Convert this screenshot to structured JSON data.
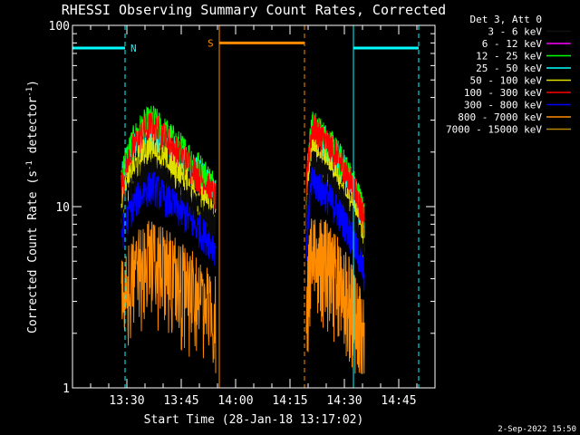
{
  "chart_data": {
    "type": "line",
    "title": "RHESSI Observing Summary Count Rates, Corrected",
    "xlabel": "Start Time (28-Jan-18 13:17:02)",
    "ylabel": "Corrected Count Rate (s^-1 detector^-1)",
    "ylabel_main": "Corrected Count Rate (s",
    "ylabel_sup1": "-1",
    "ylabel_mid": " detector",
    "ylabel_sup2": "-1",
    "ylabel_end": ")",
    "y_scale": "log",
    "ylim": [
      1,
      100
    ],
    "xlim_minutes": [
      0,
      100
    ],
    "x_ticks": [
      {
        "t": 15.0,
        "label": "13:30"
      },
      {
        "t": 30.0,
        "label": "13:45"
      },
      {
        "t": 45.0,
        "label": "14:00"
      },
      {
        "t": 60.0,
        "label": "14:15"
      },
      {
        "t": 75.0,
        "label": "14:30"
      },
      {
        "t": 90.0,
        "label": "14:45"
      }
    ],
    "y_ticks": [
      {
        "v": 1,
        "label": "1"
      },
      {
        "v": 10,
        "label": "10"
      },
      {
        "v": 100,
        "label": "100"
      }
    ],
    "legend_header": "Det 3, Att 0",
    "legend_position": "top-right outside",
    "series": [
      {
        "name": "3 - 6 keV",
        "color": "#000000"
      },
      {
        "name": "6 - 12 keV",
        "color": "#ff00ff"
      },
      {
        "name": "12 - 25 keV",
        "color": "#00ff00"
      },
      {
        "name": "25 - 50 keV",
        "color": "#00ffff"
      },
      {
        "name": "50 - 100 keV",
        "color": "#e0e000"
      },
      {
        "name": "100 - 300 keV",
        "color": "#ff0000"
      },
      {
        "name": "300 - 800 keV",
        "color": "#0000ff"
      },
      {
        "name": "800 - 7000 keV",
        "color": "#ff8c00"
      },
      {
        "name": "7000 - 15000 keV",
        "color": "#b8860b"
      }
    ],
    "segments": [
      {
        "t0": 13.5,
        "t1": 39.5
      },
      {
        "t0": 64.5,
        "t1": 80.5
      }
    ],
    "profiles": [
      {
        "name": "25 - 50 keV",
        "peak1": 26,
        "base1": 14,
        "peak2": 27,
        "base2": 12
      },
      {
        "name": "12 - 25 keV",
        "peak1": 30,
        "base1": 15,
        "peak2": 28,
        "base2": 13
      },
      {
        "name": "100 - 300 keV",
        "peak1": 28,
        "base1": 13,
        "peak2": 27,
        "base2": 12
      },
      {
        "name": "50 - 100 keV",
        "peak1": 21,
        "base1": 10,
        "peak2": 20,
        "base2": 9
      },
      {
        "name": "3 - 6 keV",
        "peak1": 16,
        "base1": 9,
        "peak2": 17,
        "base2": 8
      },
      {
        "name": "300 - 800 keV",
        "peak1": 13,
        "base1": 7,
        "peak2": 14,
        "base2": 6
      },
      {
        "name": "800 - 7000 keV",
        "peak1": 6,
        "base1": 3.5,
        "peak2": 7,
        "base2": 3
      }
    ],
    "annotations": {
      "night_label": "N",
      "saa_label": "S",
      "night_level": 75,
      "saa_level": 80,
      "night_bars": [
        {
          "t0": 0,
          "t1": 14.5
        },
        {
          "t0": 77.5,
          "t1": 95.5
        }
      ],
      "saa_bar": {
        "t0": 40.5,
        "t1": 64.0
      },
      "lines": [
        {
          "t": 0.0,
          "color": "#00ffff",
          "style": "solid"
        },
        {
          "t": 14.5,
          "color": "#00ffff",
          "style": "dashed"
        },
        {
          "t": 40.5,
          "color": "#ff8c00",
          "style": "solid"
        },
        {
          "t": 64.0,
          "color": "#ff8c00",
          "style": "dashed"
        },
        {
          "t": 77.5,
          "color": "#00ffff",
          "style": "solid"
        },
        {
          "t": 95.5,
          "color": "#00ffff",
          "style": "dashed"
        }
      ]
    }
  },
  "footer": {
    "date": "2-Sep-2022 15:50"
  }
}
